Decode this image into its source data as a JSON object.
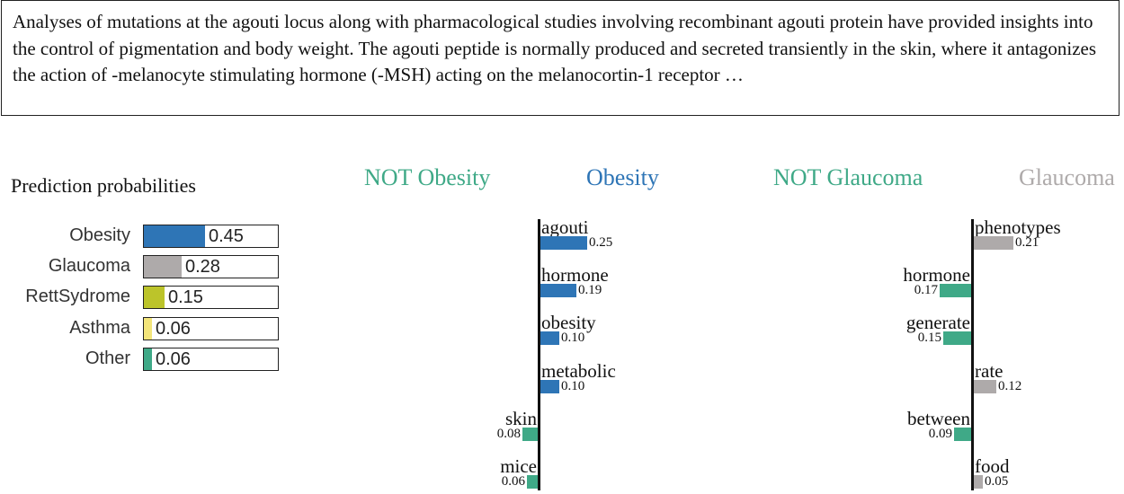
{
  "abstract_text": "Analyses of mutations at the agouti locus along with pharmacological studies involving recombinant agouti protein have provided insights into the control of pigmentation and body weight. The agouti peptide is normally produced and secreted transiently in the skin, where it antagonizes the action of -melanocyte stimulating hormone (-MSH) acting on the melanocortin-1 receptor …",
  "chart_data": [
    {
      "type": "bar",
      "title": "Prediction probabilities",
      "categories": [
        "Obesity",
        "Glaucoma",
        "RettSydrome",
        "Asthma",
        "Other"
      ],
      "values": [
        0.45,
        0.28,
        0.15,
        0.06,
        0.06
      ],
      "value_labels": [
        "0.45",
        "0.28",
        "0.15",
        "0.06",
        "0.06"
      ],
      "colors": [
        "#2e75b6",
        "#aeaaaa",
        "#bcc42a",
        "#f3e57a",
        "#3fa987"
      ],
      "xlim": [
        0,
        1
      ]
    },
    {
      "type": "bar",
      "title": "Obesity",
      "negative_label": "NOT Obesity",
      "positive_label": "Obesity",
      "negative_color": "#3fa987",
      "positive_color": "#2e75b6",
      "features": [
        {
          "word": "agouti",
          "weight": 0.25,
          "label": "0.25",
          "side": "positive"
        },
        {
          "word": "hormone",
          "weight": 0.19,
          "label": "0.19",
          "side": "positive"
        },
        {
          "word": "obesity",
          "weight": 0.1,
          "label": "0.10",
          "side": "positive"
        },
        {
          "word": "metabolic",
          "weight": 0.1,
          "label": "0.10",
          "side": "positive"
        },
        {
          "word": "skin",
          "weight": 0.08,
          "label": "0.08",
          "side": "negative"
        },
        {
          "word": "mice",
          "weight": 0.06,
          "label": "0.06",
          "side": "negative"
        }
      ]
    },
    {
      "type": "bar",
      "title": "Glaucoma",
      "negative_label": "NOT Glaucoma",
      "positive_label": "Glaucoma",
      "negative_color": "#3fa987",
      "positive_color": "#aeaaaa",
      "features": [
        {
          "word": "phenotypes",
          "weight": 0.21,
          "label": "0.21",
          "side": "positive"
        },
        {
          "word": "hormone",
          "weight": 0.17,
          "label": "0.17",
          "side": "negative"
        },
        {
          "word": "generate",
          "weight": 0.15,
          "label": "0.15",
          "side": "negative"
        },
        {
          "word": "rate",
          "weight": 0.12,
          "label": "0.12",
          "side": "positive"
        },
        {
          "word": "between",
          "weight": 0.09,
          "label": "0.09",
          "side": "negative"
        },
        {
          "word": "food",
          "weight": 0.05,
          "label": "0.05",
          "side": "positive"
        }
      ]
    }
  ]
}
